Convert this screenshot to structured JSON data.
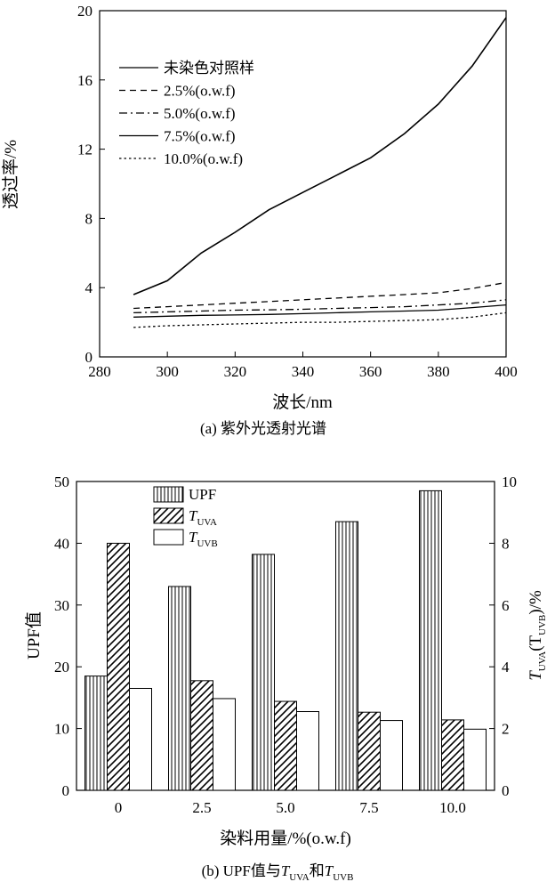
{
  "chart_data": [
    {
      "type": "line",
      "title": "(a) 紫外光透射光谱",
      "xlabel": "波长/nm",
      "ylabel": "透过率/%",
      "xlim": [
        280,
        400
      ],
      "ylim": [
        0,
        20
      ],
      "xticks": [
        280,
        300,
        320,
        340,
        360,
        380,
        400
      ],
      "yticks": [
        0,
        4,
        8,
        12,
        16,
        20
      ],
      "legend_position": "top-left",
      "x": [
        290,
        300,
        310,
        320,
        330,
        340,
        350,
        360,
        370,
        380,
        390,
        400
      ],
      "series": [
        {
          "name": "未染色对照样",
          "dash": "solid",
          "values": [
            3.6,
            4.4,
            6.0,
            7.2,
            8.5,
            9.5,
            10.5,
            11.5,
            12.9,
            14.6,
            16.8,
            19.6
          ]
        },
        {
          "name": "2.5%(o.w.f)",
          "dash": "dash",
          "values": [
            2.8,
            2.9,
            3.0,
            3.1,
            3.2,
            3.3,
            3.4,
            3.5,
            3.6,
            3.7,
            3.95,
            4.3
          ]
        },
        {
          "name": "5.0%(o.w.f)",
          "dash": "dashdot",
          "values": [
            2.55,
            2.6,
            2.65,
            2.7,
            2.72,
            2.75,
            2.8,
            2.85,
            2.9,
            3.0,
            3.1,
            3.3
          ]
        },
        {
          "name": "7.5%(o.w.f)",
          "dash": "solid",
          "values": [
            2.3,
            2.35,
            2.4,
            2.42,
            2.45,
            2.5,
            2.55,
            2.6,
            2.65,
            2.7,
            2.85,
            3.0
          ]
        },
        {
          "name": "10.0%(o.w.f)",
          "dash": "dot",
          "values": [
            1.7,
            1.8,
            1.85,
            1.9,
            1.95,
            2.0,
            2.0,
            2.05,
            2.1,
            2.15,
            2.3,
            2.55
          ]
        }
      ]
    },
    {
      "type": "bar",
      "title": "(b) UPF值与T_UVA和T_UVB",
      "title_prefix": "(b) UPF值与",
      "title_mid": "和",
      "xlabel": "染料用量/%(o.w.f)",
      "ylabel": "UPF值",
      "y2label_prefix": "T",
      "y2label_sub1": "UVA",
      "y2label_mid": "(T",
      "y2label_sub2": "UVB",
      "y2label_suffix": ")/%",
      "categories": [
        "0",
        "2.5",
        "5.0",
        "7.5",
        "10.0"
      ],
      "ylim": [
        0,
        50
      ],
      "yticks": [
        0,
        10,
        20,
        30,
        40,
        50
      ],
      "y2lim": [
        0,
        10
      ],
      "y2ticks": [
        0,
        2,
        4,
        6,
        8,
        10
      ],
      "legend_position": "top-left",
      "series": [
        {
          "name": "UPF",
          "axis": "left",
          "pattern": "vertical-lines",
          "values": [
            18.5,
            33.0,
            38.2,
            43.5,
            48.5
          ]
        },
        {
          "name": "T_UVA",
          "label_main": "T",
          "label_sub": "UVA",
          "axis": "right",
          "pattern": "diagonal-hatch",
          "values": [
            8.0,
            3.55,
            2.88,
            2.53,
            2.28
          ]
        },
        {
          "name": "T_UVB",
          "label_main": "T",
          "label_sub": "UVB",
          "axis": "right",
          "pattern": "empty",
          "values": [
            3.3,
            2.97,
            2.55,
            2.26,
            1.98
          ]
        }
      ]
    }
  ]
}
